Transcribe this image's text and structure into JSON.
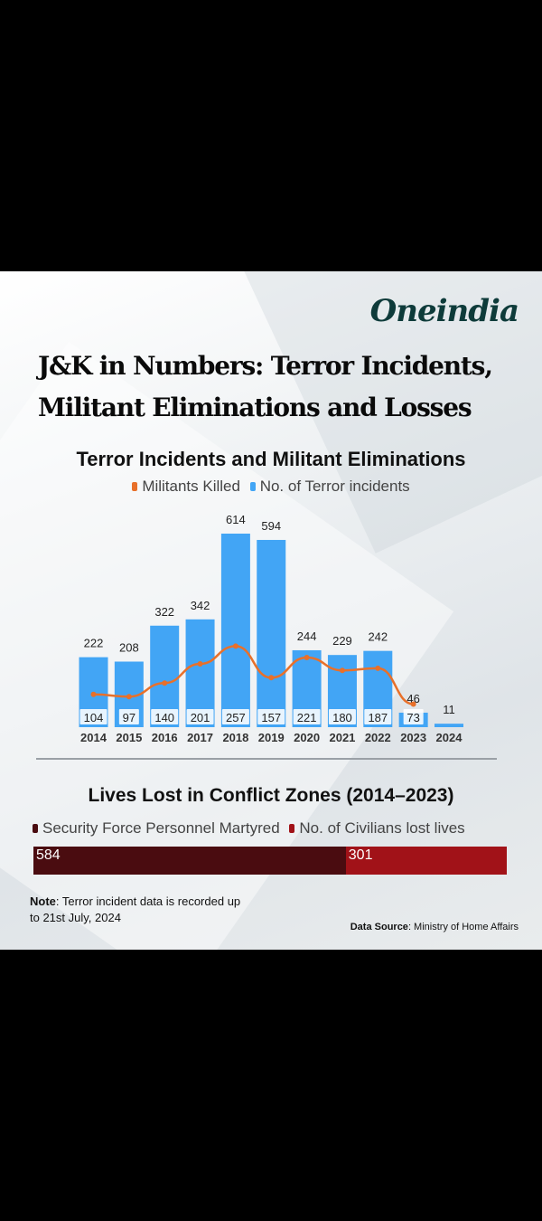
{
  "brand": "Oneindia",
  "headline": {
    "line1": "J&K in Numbers: Terror Incidents,",
    "line2": "Militant Eliminations and Losses"
  },
  "colors": {
    "bar": "#42a5f5",
    "line": "#e8702a",
    "security": "#4a0c10",
    "civilian": "#a11218"
  },
  "chart_data": [
    {
      "type": "bar",
      "title": "Terror Incidents and Militant Eliminations",
      "legend": [
        "Militants Killed",
        "No. of Terror incidents"
      ],
      "legend_placement": "top-center",
      "categories": [
        "2014",
        "2015",
        "2016",
        "2017",
        "2018",
        "2019",
        "2020",
        "2021",
        "2022",
        "2023",
        "2024"
      ],
      "series": [
        {
          "name": "No. of Terror incidents",
          "type": "bar",
          "values": [
            222,
            208,
            322,
            342,
            614,
            594,
            244,
            229,
            242,
            46,
            11
          ]
        },
        {
          "name": "Militants Killed",
          "type": "line",
          "values": [
            104,
            97,
            140,
            201,
            257,
            157,
            221,
            180,
            187,
            73,
            null
          ]
        }
      ],
      "ylim": [
        0,
        614
      ],
      "grid": false
    },
    {
      "type": "bar",
      "orientation": "horizontal-stacked",
      "title": "Lives Lost in Conflict Zones (2014–2023)",
      "legend": [
        "Security Force Personnel Martyred",
        "No. of Civilians lost lives"
      ],
      "legend_placement": "top-left",
      "series": [
        {
          "name": "Security Force Personnel Martyred",
          "values": [
            584
          ]
        },
        {
          "name": "No. of Civilians lost lives",
          "values": [
            301
          ]
        }
      ]
    }
  ],
  "note": {
    "label": "Note",
    "text": ": Terror incident data is recorded up to 21st July, 2024"
  },
  "source": {
    "label": "Data Source",
    "text": ": Ministry of Home Affairs"
  }
}
